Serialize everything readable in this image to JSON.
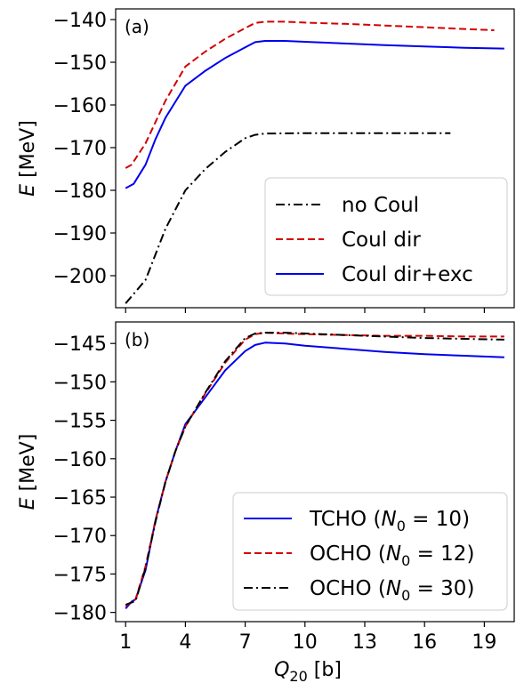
{
  "chart_data": [
    {
      "type": "line",
      "panel_label": "(a)",
      "ylabel_symbol": "E",
      "ylabel_unit": "[MeV]",
      "xlim": [
        0.5,
        20.5
      ],
      "ylim": [
        -207.5,
        -137.5
      ],
      "xticks": [
        1,
        4,
        7,
        10,
        13,
        16,
        19
      ],
      "xticks_labeled": false,
      "yticks": [
        -200,
        -190,
        -180,
        -170,
        -160,
        -150,
        -140
      ],
      "ytick_labels": [
        "−200",
        "−190",
        "−180",
        "−170",
        "−160",
        "−150",
        "−140"
      ],
      "legend_position": "lower-right",
      "grid": false,
      "series": [
        {
          "name": "no Coul",
          "color": "#000000",
          "dash": "dashdot",
          "x": [
            1,
            2,
            2.5,
            3,
            4,
            5,
            6,
            7,
            7.5,
            8,
            10,
            12,
            14,
            16,
            17.3
          ],
          "y": [
            -206.5,
            -201,
            -195,
            -189,
            -180,
            -175,
            -171,
            -167.8,
            -167,
            -166.7,
            -166.6,
            -166.6,
            -166.6,
            -166.6,
            -166.6
          ]
        },
        {
          "name": "Coul dir",
          "color": "#d40000",
          "dash": "dashed",
          "x": [
            1,
            1.3,
            2,
            2.5,
            3,
            4,
            5,
            6,
            7,
            7.5,
            8,
            9,
            10,
            12,
            14,
            16,
            18,
            19.5
          ],
          "y": [
            -174.8,
            -174,
            -169,
            -164,
            -159,
            -151,
            -147.5,
            -144.5,
            -142,
            -140.8,
            -140.5,
            -140.5,
            -140.7,
            -141,
            -141.4,
            -141.8,
            -142.2,
            -142.5
          ]
        },
        {
          "name": "Coul dir+exc",
          "color": "#0000ee",
          "dash": "solid",
          "x": [
            1,
            1.4,
            2,
            2.5,
            3,
            4,
            5,
            6,
            7,
            7.5,
            8,
            9,
            10,
            12,
            14,
            16,
            18,
            20
          ],
          "y": [
            -179.5,
            -178.5,
            -174,
            -168,
            -163,
            -155.5,
            -152,
            -149,
            -146.5,
            -145.3,
            -145,
            -145,
            -145.2,
            -145.6,
            -146,
            -146.3,
            -146.6,
            -146.8
          ]
        }
      ]
    },
    {
      "type": "line",
      "panel_label": "(b)",
      "ylabel_symbol": "E",
      "ylabel_unit": "[MeV]",
      "xlabel_symbol": "Q",
      "xlabel_subscript": "20",
      "xlabel_unit": "[b]",
      "xlim": [
        0.5,
        20.5
      ],
      "ylim": [
        -181.2,
        -142.2
      ],
      "xticks": [
        1,
        4,
        7,
        10,
        13,
        16,
        19
      ],
      "xticks_labeled": true,
      "yticks": [
        -180,
        -175,
        -170,
        -165,
        -160,
        -155,
        -150,
        -145
      ],
      "ytick_labels": [
        "−180",
        "−175",
        "−170",
        "−165",
        "−160",
        "−155",
        "−150",
        "−145"
      ],
      "legend_position": "lower-right",
      "grid": false,
      "series": [
        {
          "name": "TCHO",
          "name_param": "N",
          "name_param_sub": "0",
          "name_param_value": "10",
          "color": "#0000ee",
          "dash": "solid",
          "x": [
            1,
            1.3,
            1.5,
            2,
            2.5,
            3,
            3.5,
            4,
            5,
            6,
            7,
            7.5,
            8,
            9,
            10,
            12,
            14,
            16,
            18,
            20
          ],
          "y": [
            -179.5,
            -178.6,
            -178.3,
            -174.5,
            -168,
            -163,
            -159,
            -155.5,
            -152,
            -148.5,
            -146,
            -145.2,
            -144.9,
            -145,
            -145.3,
            -145.7,
            -146.1,
            -146.4,
            -146.6,
            -146.8
          ]
        },
        {
          "name": "OCHO",
          "name_param": "N",
          "name_param_sub": "0",
          "name_param_value": "12",
          "color": "#d40000",
          "dash": "dashed",
          "x": [
            1,
            1.5,
            2,
            2.5,
            3,
            3.5,
            4,
            5,
            6,
            7,
            7.5,
            8,
            9,
            10,
            12,
            14,
            16,
            18,
            20
          ],
          "y": [
            -179.2,
            -178.3,
            -174,
            -168,
            -163,
            -159,
            -155.8,
            -151.5,
            -147.5,
            -144.5,
            -143.8,
            -143.6,
            -143.7,
            -143.8,
            -143.9,
            -144,
            -144,
            -144.1,
            -144.1
          ]
        },
        {
          "name": "OCHO",
          "name_param": "N",
          "name_param_sub": "0",
          "name_param_value": "30",
          "color": "#000000",
          "dash": "dashdot",
          "x": [
            1,
            1.5,
            2,
            2.5,
            3,
            3.5,
            4,
            5,
            6,
            7,
            7.5,
            8,
            9,
            10,
            12,
            14,
            16,
            18,
            20
          ],
          "y": [
            -179,
            -178.5,
            -174.2,
            -168.2,
            -163,
            -159,
            -155.8,
            -151.4,
            -147.3,
            -144.3,
            -143.7,
            -143.6,
            -143.6,
            -143.7,
            -143.9,
            -144.1,
            -144.3,
            -144.4,
            -144.5
          ]
        }
      ]
    }
  ]
}
